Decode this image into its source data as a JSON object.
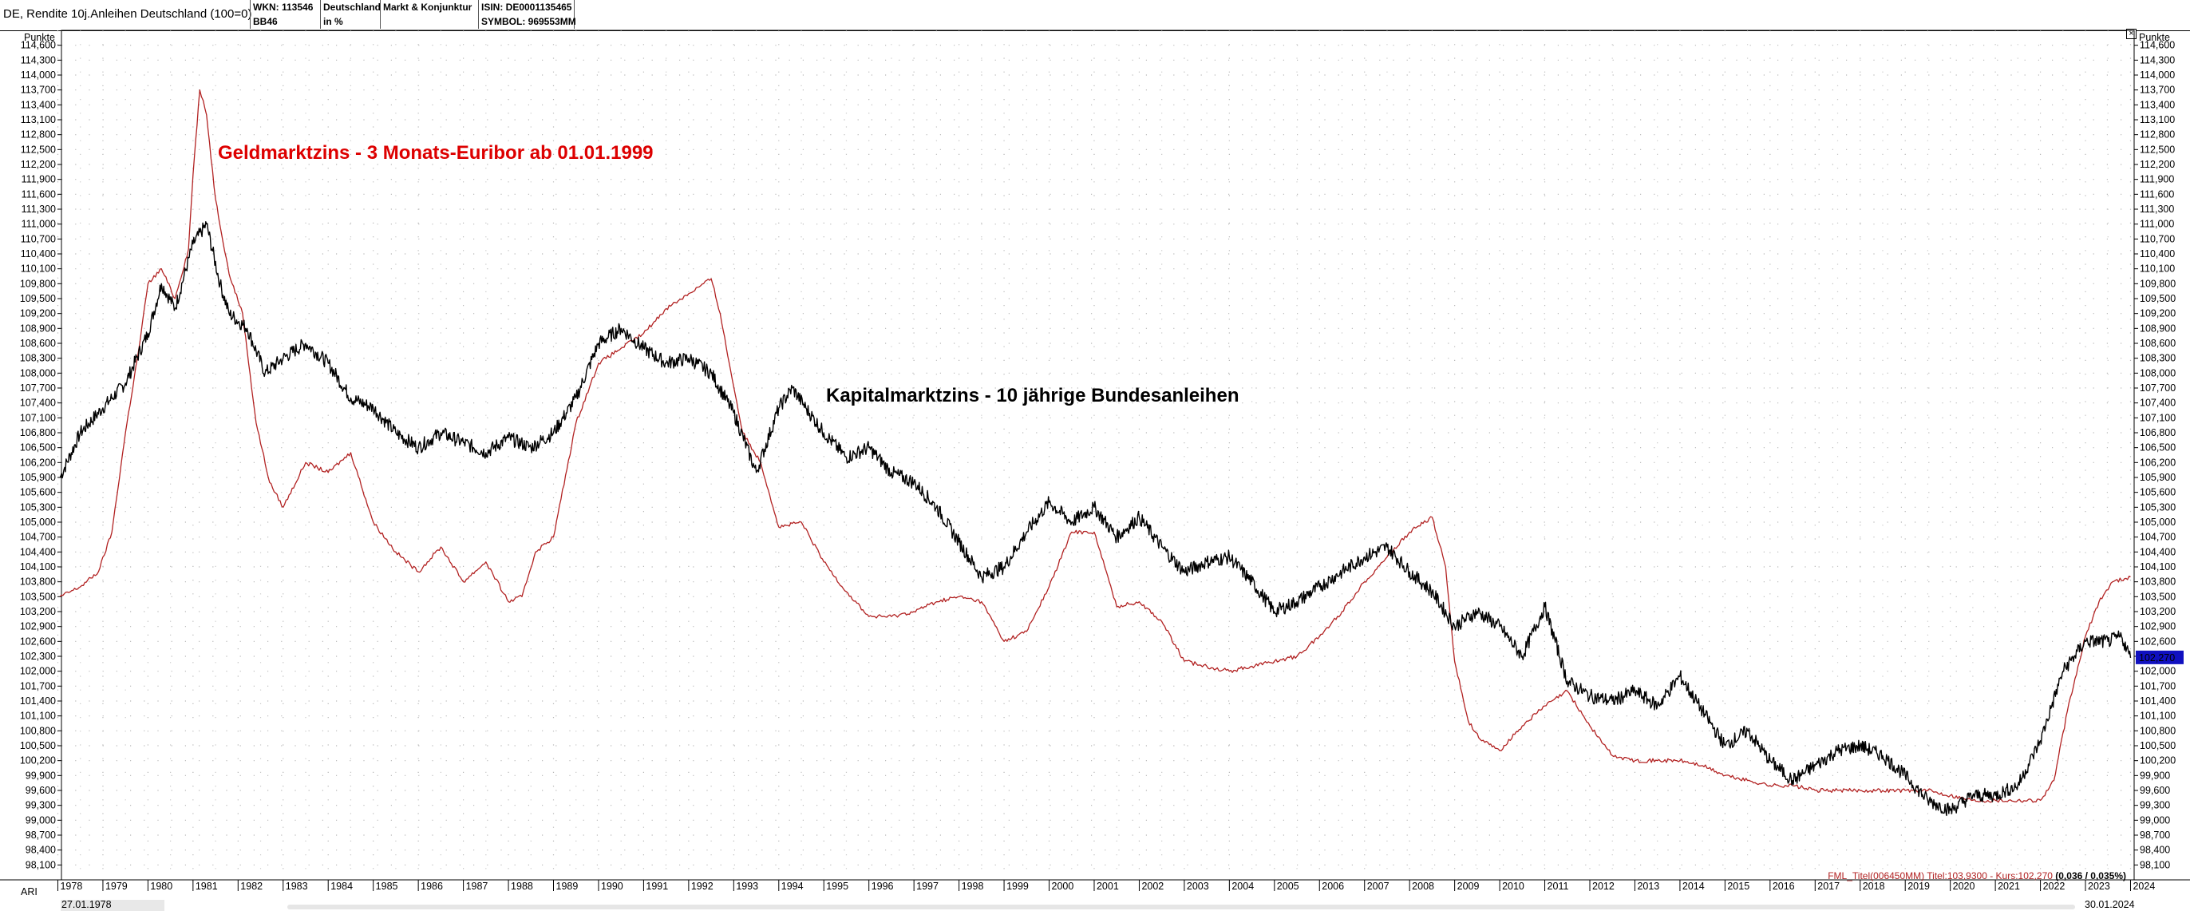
{
  "window": {
    "title": "DE, Rendite 10j.Anleihen Deutschland (100=0)"
  },
  "header_cells": [
    {
      "line1": "WKN: 113546",
      "line2": "BB46"
    },
    {
      "line1": "Deutschland",
      "line2": "in %"
    },
    {
      "line1": "Markt & Konjunktur",
      "line2": ""
    },
    {
      "line1": "ISIN: DE0001135465",
      "line2": "SYMBOL: 969553MM"
    }
  ],
  "chart_data": {
    "type": "line",
    "unit_label": "Punkte",
    "y_ticks": [
      "114,600",
      "114,300",
      "114,000",
      "113,700",
      "113,400",
      "113,100",
      "112,800",
      "112,500",
      "112,200",
      "111,900",
      "111,600",
      "111,300",
      "111,000",
      "110,700",
      "110,400",
      "110,100",
      "109,800",
      "109,500",
      "109,200",
      "108,900",
      "108,600",
      "108,300",
      "108,000",
      "107,700",
      "107,400",
      "107,100",
      "106,800",
      "106,500",
      "106,200",
      "105,900",
      "105,600",
      "105,300",
      "105,000",
      "104,700",
      "104,400",
      "104,100",
      "103,800",
      "103,500",
      "103,200",
      "102,900",
      "102,600",
      "102,300",
      "102,000",
      "101,700",
      "101,400",
      "101,100",
      "100,800",
      "100,500",
      "100,200",
      "99,900",
      "99,600",
      "99,300",
      "99,000",
      "98,700",
      "98,400",
      "98,100"
    ],
    "ylim": [
      97.8,
      114.9
    ],
    "x_ticks": [
      "1978",
      "1979",
      "1980",
      "1981",
      "1982",
      "1983",
      "1984",
      "1985",
      "1986",
      "1987",
      "1988",
      "1989",
      "1990",
      "1991",
      "1992",
      "1993",
      "1994",
      "1995",
      "1996",
      "1997",
      "1998",
      "1999",
      "2000",
      "2001",
      "2002",
      "2003",
      "2004",
      "2005",
      "2006",
      "2007",
      "2008",
      "2009",
      "2010",
      "2011",
      "2012",
      "2013",
      "2014",
      "2015",
      "2016",
      "2017",
      "2018",
      "2019",
      "2020",
      "2021",
      "2022",
      "2023",
      "2024"
    ],
    "xlim": [
      1978.08,
      2024.08
    ],
    "grid": true,
    "series": [
      {
        "name": "Kapitalmarktzins - 10 jährige Bundesanleihen",
        "color": "#000000",
        "x": [
          1978.05,
          1978.5,
          1979.0,
          1979.5,
          1980.0,
          1980.3,
          1980.6,
          1981.0,
          1981.3,
          1981.6,
          1981.8,
          1982.2,
          1982.6,
          1983.0,
          1983.5,
          1984.0,
          1984.5,
          1985.0,
          1985.5,
          1986.0,
          1986.5,
          1987.0,
          1987.5,
          1988.0,
          1988.5,
          1989.0,
          1989.5,
          1990.0,
          1990.5,
          1991.0,
          1991.5,
          1992.0,
          1992.5,
          1993.0,
          1993.5,
          1994.0,
          1994.3,
          1994.6,
          1995.0,
          1995.5,
          1996.0,
          1996.5,
          1997.0,
          1997.5,
          1998.0,
          1998.5,
          1999.0,
          1999.5,
          2000.0,
          2000.5,
          2001.0,
          2001.5,
          2002.0,
          2002.5,
          2003.0,
          2003.5,
          2004.0,
          2004.5,
          2005.0,
          2005.5,
          2006.0,
          2006.5,
          2007.0,
          2007.5,
          2008.0,
          2008.5,
          2009.0,
          2009.5,
          2010.0,
          2010.5,
          2011.0,
          2011.5,
          2012.0,
          2012.5,
          2013.0,
          2013.5,
          2014.0,
          2014.5,
          2015.0,
          2015.5,
          2016.0,
          2016.5,
          2017.0,
          2017.5,
          2018.0,
          2018.5,
          2019.0,
          2019.5,
          2020.0,
          2020.5,
          2021.0,
          2021.5,
          2022.0,
          2022.5,
          2023.0,
          2023.5,
          2023.8,
          2024.0
        ],
        "y": [
          105.9,
          106.8,
          107.3,
          107.8,
          108.8,
          109.8,
          109.3,
          110.6,
          111.0,
          109.8,
          109.2,
          108.9,
          108.0,
          108.3,
          108.6,
          108.2,
          107.5,
          107.3,
          106.8,
          106.5,
          106.8,
          106.6,
          106.4,
          106.7,
          106.5,
          106.8,
          107.5,
          108.6,
          108.9,
          108.5,
          108.2,
          108.3,
          108.0,
          107.2,
          106.0,
          107.3,
          107.7,
          107.3,
          106.8,
          106.3,
          106.5,
          106.0,
          105.8,
          105.3,
          104.6,
          103.9,
          104.1,
          104.8,
          105.4,
          105.0,
          105.3,
          104.7,
          105.1,
          104.5,
          104.0,
          104.2,
          104.3,
          103.8,
          103.2,
          103.4,
          103.7,
          104.0,
          104.3,
          104.5,
          104.0,
          103.6,
          102.9,
          103.2,
          102.9,
          102.3,
          103.3,
          101.8,
          101.5,
          101.4,
          101.6,
          101.3,
          101.9,
          101.2,
          100.5,
          100.8,
          100.2,
          99.8,
          100.1,
          100.4,
          100.5,
          100.3,
          99.9,
          99.4,
          99.2,
          99.5,
          99.5,
          99.7,
          100.6,
          102.0,
          102.6,
          102.6,
          102.7,
          102.27
        ]
      },
      {
        "name": "Geldmarktzins - 3 Monats-Euribor ab 01.01.1999",
        "color": "#b22222",
        "x": [
          1978.05,
          1978.5,
          1978.9,
          1979.2,
          1979.5,
          1979.8,
          1980.0,
          1980.3,
          1980.6,
          1980.9,
          1981.0,
          1981.15,
          1981.3,
          1981.5,
          1981.8,
          1982.1,
          1982.4,
          1982.7,
          1983.0,
          1983.5,
          1984.0,
          1984.5,
          1985.0,
          1985.5,
          1986.0,
          1986.5,
          1987.0,
          1987.5,
          1988.0,
          1988.3,
          1988.6,
          1989.0,
          1989.5,
          1990.0,
          1990.5,
          1991.0,
          1991.5,
          1992.0,
          1992.5,
          1992.7,
          1992.9,
          1993.2,
          1993.6,
          1994.0,
          1994.5,
          1995.0,
          1995.5,
          1996.0,
          1996.5,
          1997.0,
          1997.5,
          1998.0,
          1998.5,
          1999.0,
          1999.5,
          2000.0,
          2000.5,
          2001.0,
          2001.5,
          2002.0,
          2002.5,
          2003.0,
          2003.5,
          2004.0,
          2004.5,
          2005.0,
          2005.5,
          2006.0,
          2006.5,
          2007.0,
          2007.5,
          2008.0,
          2008.5,
          2008.8,
          2009.0,
          2009.3,
          2009.6,
          2010.0,
          2010.5,
          2011.0,
          2011.5,
          2012.0,
          2012.5,
          2013.0,
          2013.5,
          2014.0,
          2014.5,
          2015.0,
          2015.5,
          2016.0,
          2016.5,
          2017.0,
          2017.5,
          2018.0,
          2018.5,
          2019.0,
          2019.5,
          2020.0,
          2020.5,
          2021.0,
          2021.5,
          2022.0,
          2022.3,
          2022.6,
          2023.0,
          2023.3,
          2023.6,
          2024.0
        ],
        "y": [
          103.5,
          103.7,
          104.0,
          104.8,
          106.8,
          108.5,
          109.8,
          110.1,
          109.5,
          110.5,
          112.0,
          113.7,
          113.2,
          111.5,
          110.0,
          109.2,
          107.0,
          105.8,
          105.3,
          106.2,
          106.0,
          106.4,
          105.0,
          104.4,
          104.0,
          104.5,
          103.8,
          104.2,
          103.4,
          103.5,
          104.4,
          104.7,
          107.0,
          108.2,
          108.5,
          108.8,
          109.3,
          109.6,
          109.9,
          109.2,
          108.2,
          106.8,
          106.2,
          104.9,
          105.0,
          104.2,
          103.6,
          103.1,
          103.1,
          103.2,
          103.4,
          103.5,
          103.4,
          102.6,
          102.8,
          103.7,
          104.8,
          104.8,
          103.3,
          103.4,
          103.0,
          102.2,
          102.1,
          102.0,
          102.1,
          102.2,
          102.3,
          102.7,
          103.2,
          103.8,
          104.3,
          104.8,
          105.1,
          104.1,
          102.2,
          101.0,
          100.6,
          100.4,
          100.9,
          101.3,
          101.6,
          100.9,
          100.3,
          100.2,
          100.2,
          100.2,
          100.1,
          99.9,
          99.8,
          99.7,
          99.7,
          99.6,
          99.6,
          99.6,
          99.6,
          99.6,
          99.6,
          99.5,
          99.4,
          99.4,
          99.4,
          99.4,
          99.8,
          101.2,
          102.7,
          103.4,
          103.8,
          103.9
        ]
      }
    ],
    "annotations": [
      {
        "text": "Geldmarktzins - 3 Monats-Euribor ab 01.01.1999",
        "color": "#dd0000"
      },
      {
        "text": "Kapitalmarktzins - 10 jährige Bundesanleihen",
        "color": "#000000"
      }
    ],
    "last_value": "102,270",
    "last_value_color": "#1010c0"
  },
  "footer": {
    "ari_label": "ARI",
    "date_start": "27.01.1978",
    "date_end": "30.01.2024",
    "kurs_info_prefix": "FML_Titel(006450MM) Titel:103,9300 - Kurs:102,270 ",
    "kurs_info_change": "(0,036 / 0,035%)"
  }
}
